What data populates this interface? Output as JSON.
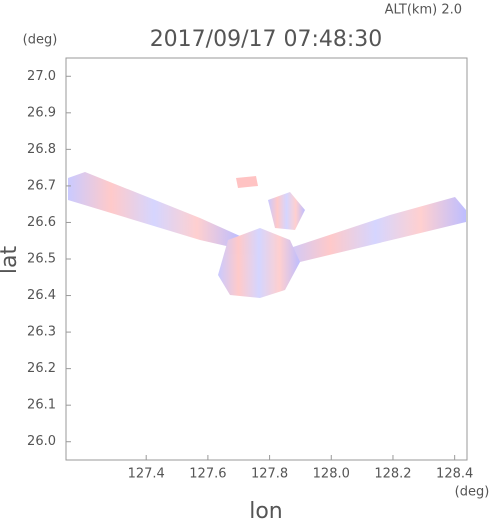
{
  "chart_data": {
    "type": "radar-image",
    "title": "2017/09/17 07:48:30",
    "subtitle": "ALT(km) 2.0",
    "x_label": "lon",
    "y_label": "lat",
    "x_unit": "(deg)",
    "y_unit": "(deg)",
    "xlim": [
      127.14,
      128.44
    ],
    "ylim": [
      25.95,
      27.05
    ],
    "xticks": [
      127.4,
      127.6,
      127.8,
      {
        "value": 128,
        "label": "128.0"
      },
      128.2,
      128.4
    ],
    "yticks": [
      {
        "value": 26,
        "label": "26.0"
      },
      26.1,
      26.2,
      26.3,
      26.4,
      26.5,
      26.6,
      26.7,
      26.8,
      26.9,
      {
        "value": 27,
        "label": "27.0"
      }
    ]
  }
}
